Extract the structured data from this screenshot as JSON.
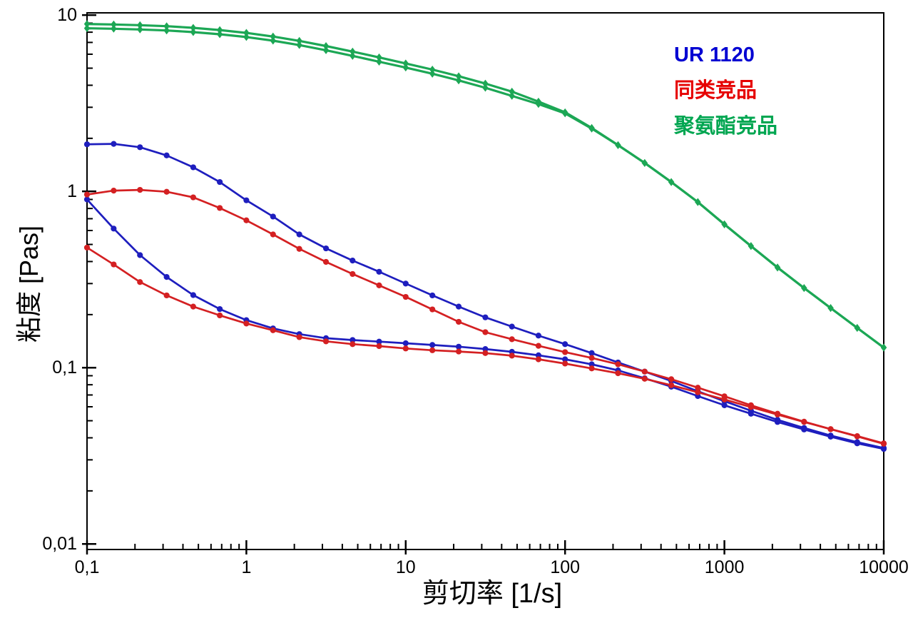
{
  "chart_data": {
    "type": "line",
    "title": "",
    "xlabel": "剪切率 [1/s]",
    "ylabel": "粘度 [Pas]",
    "x_scale": "log",
    "y_scale": "log",
    "xlim": [
      0.1,
      10000
    ],
    "ylim": [
      0.0093,
      10.3
    ],
    "grid": false,
    "frame": true,
    "axis_color": "#000000",
    "x_ticks": [
      {
        "v": 0.1,
        "label": "0,1"
      },
      {
        "v": 1,
        "label": "1"
      },
      {
        "v": 10,
        "label": "10"
      },
      {
        "v": 100,
        "label": "100"
      },
      {
        "v": 1000,
        "label": "1000"
      },
      {
        "v": 10000,
        "label": "10000"
      }
    ],
    "y_ticks": [
      {
        "v": 0.01,
        "label": "0,01"
      },
      {
        "v": 0.1,
        "label": "0,1"
      },
      {
        "v": 1,
        "label": "1"
      },
      {
        "v": 10,
        "label": "10"
      }
    ],
    "x": [
      0.1,
      0.147,
      0.215,
      0.316,
      0.464,
      0.681,
      1,
      1.47,
      2.15,
      3.16,
      4.64,
      6.81,
      10,
      14.7,
      21.5,
      31.6,
      46.4,
      68.1,
      100,
      147,
      215,
      316,
      464,
      681,
      1000,
      1468,
      2154,
      3162,
      4642,
      6813,
      10000
    ],
    "groups": [
      {
        "label": "UR 1120",
        "color": "#1e1ebe",
        "marker": "circle",
        "curves": [
          [
            1.85,
            1.86,
            1.78,
            1.6,
            1.37,
            1.13,
            0.89,
            0.72,
            0.57,
            0.475,
            0.405,
            0.35,
            0.3,
            0.257,
            0.222,
            0.193,
            0.171,
            0.152,
            0.136,
            0.121,
            0.107,
            0.095,
            0.084,
            0.0735,
            0.0645,
            0.057,
            0.0506,
            0.0455,
            0.0412,
            0.0378,
            0.035
          ],
          [
            0.9,
            0.615,
            0.435,
            0.327,
            0.258,
            0.215,
            0.186,
            0.167,
            0.155,
            0.147,
            0.1435,
            0.1405,
            0.1375,
            0.1345,
            0.1315,
            0.1275,
            0.123,
            0.1175,
            0.1115,
            0.1045,
            0.0965,
            0.087,
            0.078,
            0.069,
            0.0612,
            0.0548,
            0.0492,
            0.0446,
            0.0406,
            0.0372,
            0.0346
          ]
        ]
      },
      {
        "label": "同类竞品",
        "color": "#d42022",
        "marker": "circle",
        "curves": [
          [
            0.96,
            1.01,
            1.02,
            0.995,
            0.925,
            0.805,
            0.685,
            0.57,
            0.472,
            0.398,
            0.34,
            0.293,
            0.252,
            0.214,
            0.182,
            0.159,
            0.145,
            0.133,
            0.1225,
            0.1135,
            0.1045,
            0.095,
            0.086,
            0.077,
            0.0688,
            0.0612,
            0.0548,
            0.0494,
            0.0448,
            0.0409,
            0.0372
          ],
          [
            0.48,
            0.385,
            0.306,
            0.257,
            0.222,
            0.198,
            0.178,
            0.163,
            0.149,
            0.141,
            0.136,
            0.1325,
            0.1285,
            0.1255,
            0.1235,
            0.121,
            0.117,
            0.1115,
            0.1055,
            0.099,
            0.093,
            0.0865,
            0.0795,
            0.0725,
            0.066,
            0.0598,
            0.0542,
            0.0492,
            0.0448,
            0.0407,
            0.037
          ]
        ]
      },
      {
        "label": "聚氨酯竞品",
        "color": "#1ca755",
        "marker": "diamond",
        "curves": [
          [
            8.9,
            8.85,
            8.77,
            8.65,
            8.47,
            8.23,
            7.93,
            7.56,
            7.14,
            6.68,
            6.21,
            5.76,
            5.32,
            4.91,
            4.5,
            4.09,
            3.68,
            3.23,
            2.81,
            2.29,
            1.83,
            1.45,
            1.13,
            0.87,
            0.65,
            0.49,
            0.37,
            0.283,
            0.218,
            0.168,
            0.13
          ],
          [
            8.42,
            8.37,
            8.29,
            8.18,
            8.01,
            7.79,
            7.51,
            7.16,
            6.76,
            6.32,
            5.87,
            5.44,
            5.04,
            4.65,
            4.26,
            3.87,
            3.48,
            3.13,
            2.77,
            2.27,
            1.83,
            1.45,
            1.13,
            0.87,
            0.65,
            0.49,
            0.37,
            0.283,
            0.218,
            0.168,
            0.13
          ]
        ]
      }
    ],
    "legend": {
      "position": "top-right",
      "entries": [
        {
          "label": "UR 1120",
          "color": "#0000d2"
        },
        {
          "label": "同类竞品",
          "color": "#e60000"
        },
        {
          "label": "聚氨酯竞品",
          "color": "#00a651"
        }
      ]
    }
  }
}
